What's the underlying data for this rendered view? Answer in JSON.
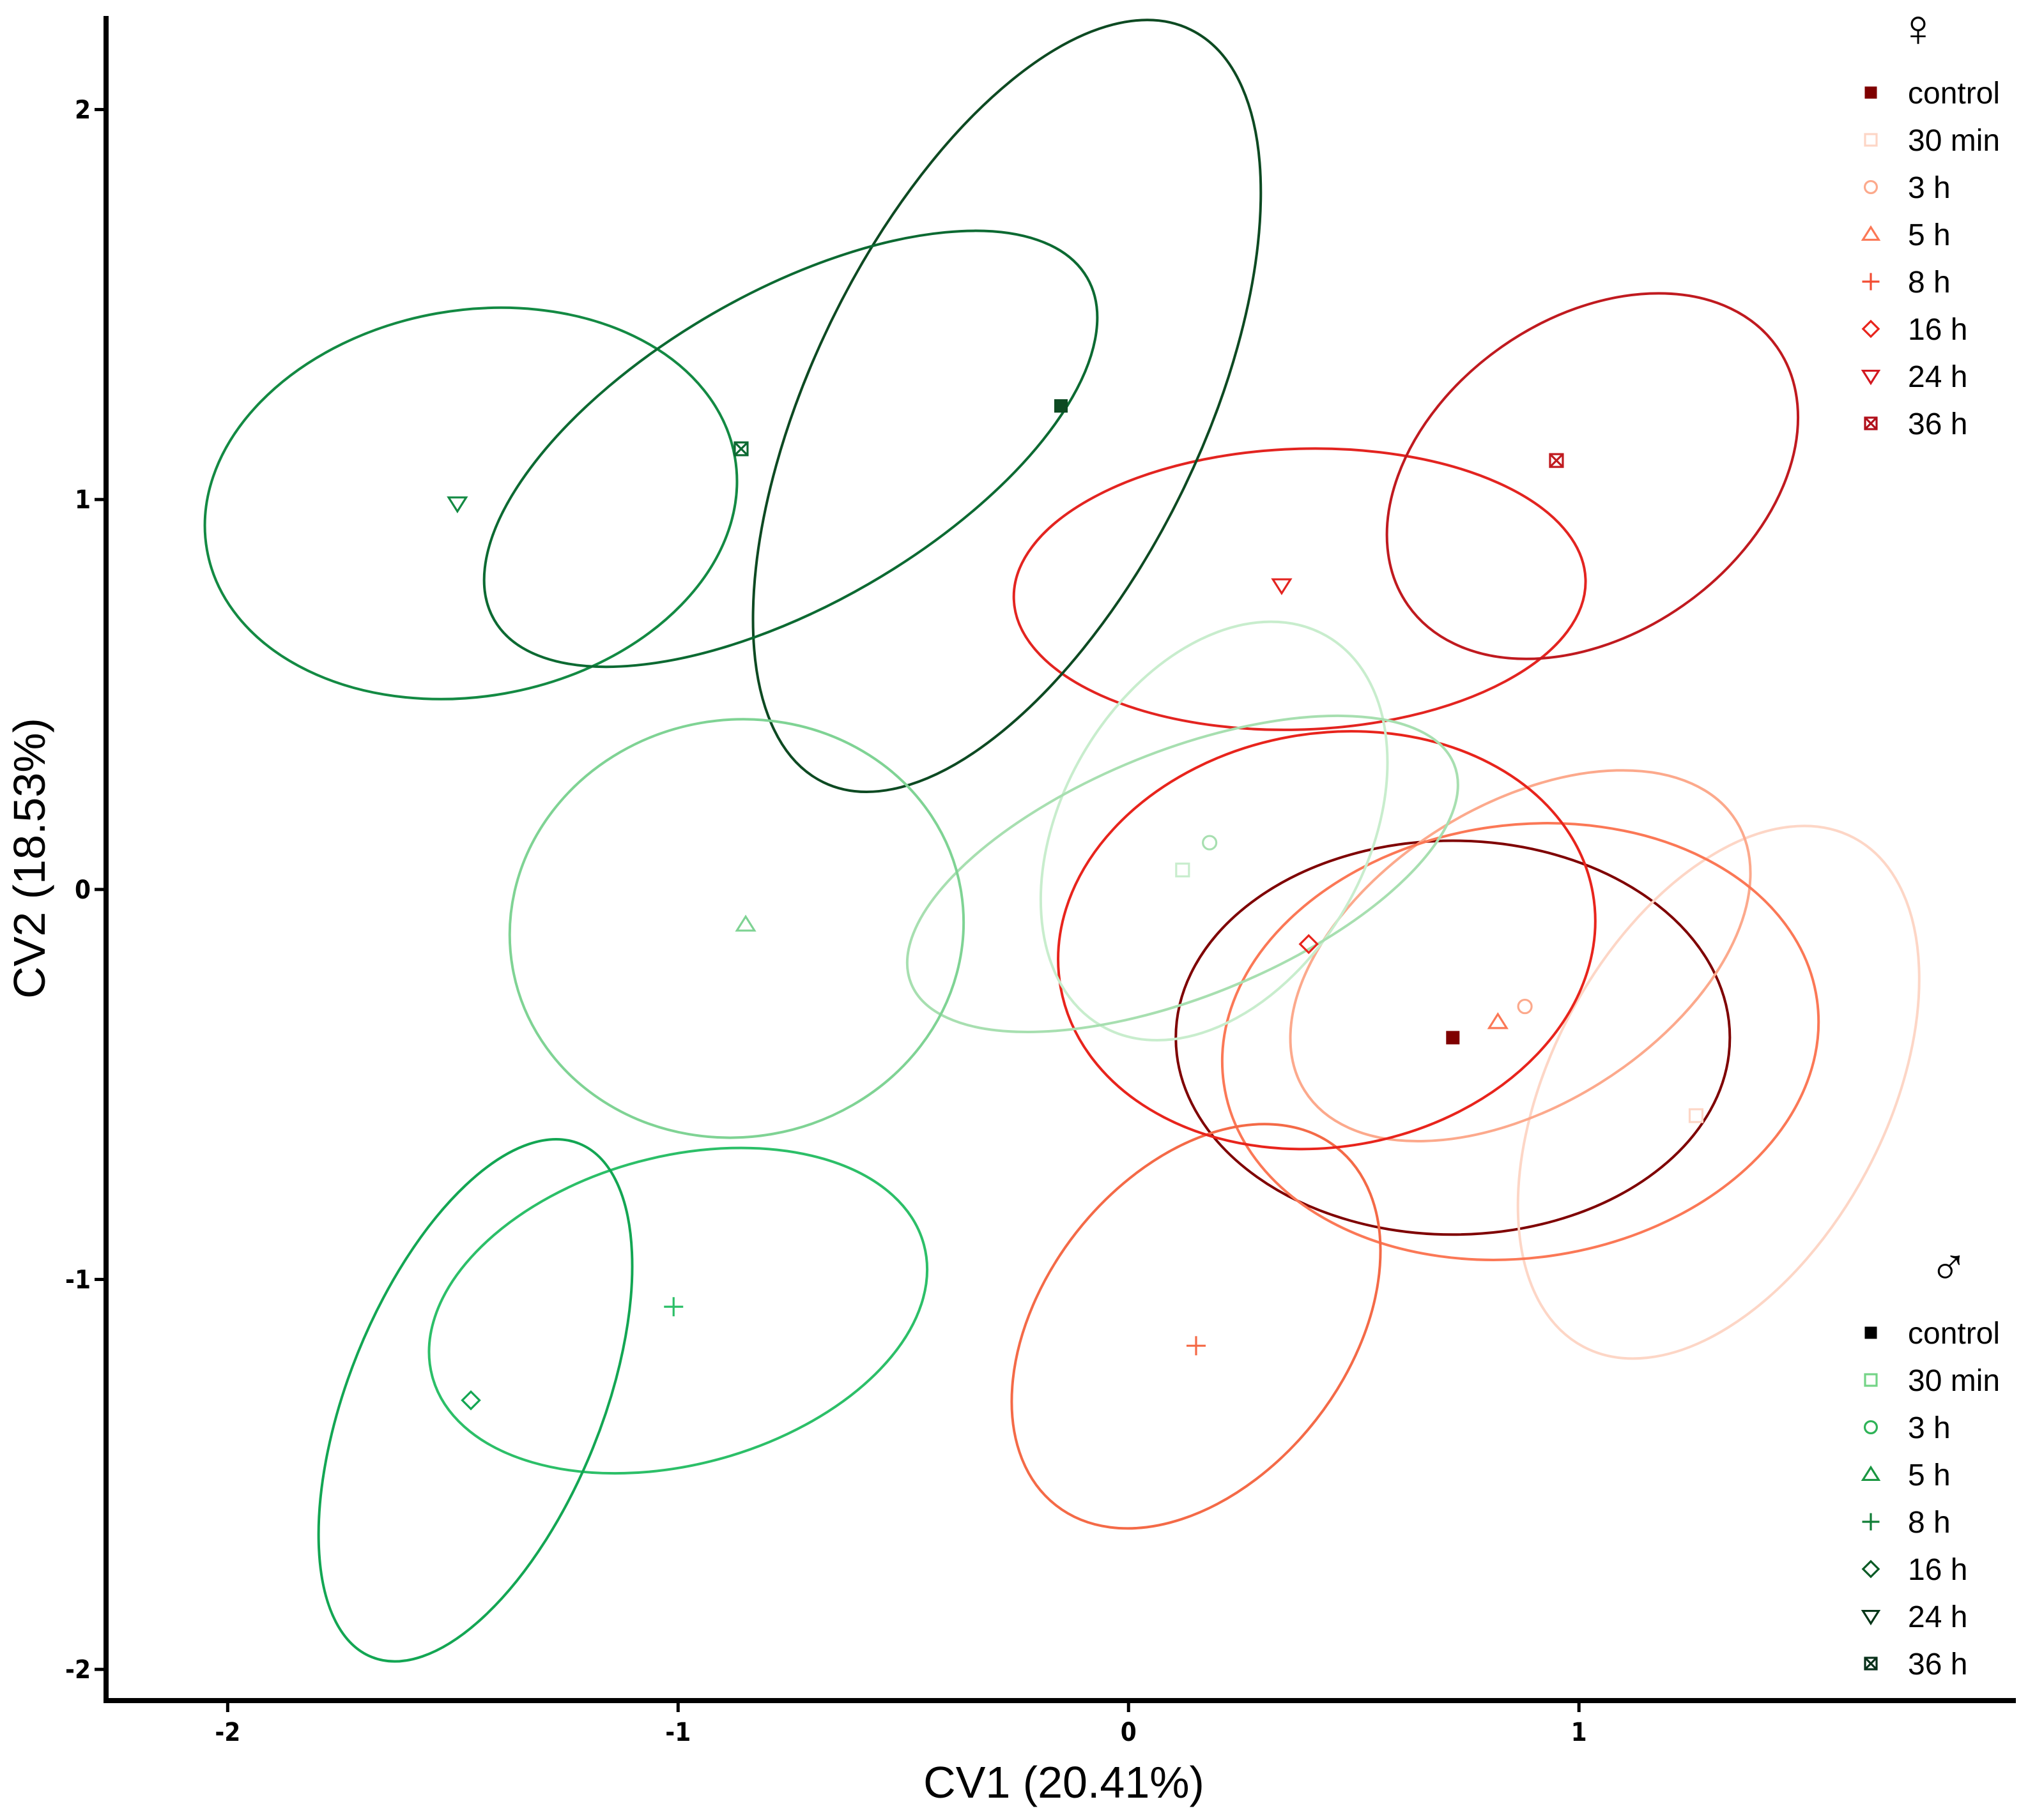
{
  "chart_data": {
    "type": "scatter",
    "xlabel": "CV1 (20.41%)",
    "ylabel": "CV2 (18.53%)",
    "xlim": [
      -2.27,
      1.97
    ],
    "ylim": [
      -2.08,
      2.24
    ],
    "xticks": [
      -2,
      -1,
      0,
      1
    ],
    "yticks": [
      -2,
      -1,
      0,
      1,
      2
    ],
    "xtick_labels": [
      "-2",
      "-1",
      "0",
      "1"
    ],
    "ytick_labels": [
      "-2",
      "-1",
      "0",
      "1",
      "2"
    ],
    "grid": false,
    "legends": [
      {
        "title": "♀",
        "placement": "top-right",
        "entries": [
          {
            "label": "control",
            "shape": "square-filled",
            "color": "#7f0000"
          },
          {
            "label": "30 min",
            "shape": "square",
            "color": "#fdd6c6"
          },
          {
            "label": "3 h",
            "shape": "circle",
            "color": "#fca98c"
          },
          {
            "label": "5 h",
            "shape": "triangle",
            "color": "#fb7856"
          },
          {
            "label": "8 h",
            "shape": "plus",
            "color": "#f24d33"
          },
          {
            "label": "16 h",
            "shape": "diamond",
            "color": "#e8241c"
          },
          {
            "label": "24 h",
            "shape": "triangle-down",
            "color": "#d31820"
          },
          {
            "label": "36 h",
            "shape": "square-x",
            "color": "#b00f1a"
          }
        ]
      },
      {
        "title": "♂",
        "placement": "bottom-right",
        "entries": [
          {
            "label": "control",
            "shape": "square-filled",
            "color": "#000000"
          },
          {
            "label": "30 min",
            "shape": "square",
            "color": "#74d487"
          },
          {
            "label": "3 h",
            "shape": "circle",
            "color": "#2eb357"
          },
          {
            "label": "5 h",
            "shape": "triangle",
            "color": "#1a9641"
          },
          {
            "label": "8 h",
            "shape": "plus",
            "color": "#107d36"
          },
          {
            "label": "16 h",
            "shape": "diamond",
            "color": "#0a5a25"
          },
          {
            "label": "24 h",
            "shape": "triangle-down",
            "color": "#063618"
          },
          {
            "label": "36 h",
            "shape": "square-x",
            "color": "#08301a"
          }
        ]
      }
    ],
    "series": [
      {
        "name": "female control",
        "shape": "square-filled",
        "color": "#7f0000",
        "x": 0.72,
        "y": -0.38,
        "ellipse": {
          "cx": 0.72,
          "cy": -0.38,
          "rx": 0.615,
          "ry": 0.505,
          "angle": 0
        }
      },
      {
        "name": "female 30 min",
        "shape": "square",
        "color": "#fdd6c6",
        "x": 1.26,
        "y": -0.58,
        "ellipse": {
          "cx": 1.31,
          "cy": -0.52,
          "rx": 0.64,
          "ry": 0.43,
          "angle": 62
        }
      },
      {
        "name": "female 3 h",
        "shape": "circle",
        "color": "#fca98c",
        "x": 0.88,
        "y": -0.3,
        "ellipse": {
          "cx": 0.87,
          "cy": -0.17,
          "rx": 0.565,
          "ry": 0.385,
          "angle": 32
        }
      },
      {
        "name": "female 5 h",
        "shape": "triangle",
        "color": "#fb7856",
        "x": 0.82,
        "y": -0.34,
        "ellipse": {
          "cx": 0.87,
          "cy": -0.39,
          "rx": 0.665,
          "ry": 0.555,
          "angle": 8
        }
      },
      {
        "name": "female 8 h",
        "shape": "plus",
        "color": "#f46a47",
        "x": 0.15,
        "y": -1.17,
        "ellipse": {
          "cx": 0.15,
          "cy": -1.12,
          "rx": 0.505,
          "ry": 0.39,
          "angle": 52
        }
      },
      {
        "name": "female 16 h",
        "shape": "diamond",
        "color": "#e8241c",
        "x": 0.4,
        "y": -0.14,
        "ellipse": {
          "cx": 0.44,
          "cy": -0.13,
          "rx": 0.6,
          "ry": 0.53,
          "angle": 10
        }
      },
      {
        "name": "female 24 h",
        "shape": "triangle-down",
        "color": "#e32420",
        "x": 0.34,
        "y": 0.78,
        "ellipse": {
          "cx": 0.38,
          "cy": 0.77,
          "rx": 0.635,
          "ry": 0.36,
          "angle": 2
        }
      },
      {
        "name": "female 36 h",
        "shape": "square-x",
        "color": "#c01a1f",
        "x": 0.95,
        "y": 1.1,
        "ellipse": {
          "cx": 1.03,
          "cy": 1.06,
          "rx": 0.5,
          "ry": 0.405,
          "angle": 35
        }
      },
      {
        "name": "male control",
        "shape": "square-filled",
        "color": "#0d4a22",
        "x": -0.15,
        "y": 1.24,
        "ellipse": {
          "cx": -0.27,
          "cy": 1.24,
          "rx": 0.93,
          "ry": 0.5,
          "angle": 64
        }
      },
      {
        "name": "male 30 min",
        "shape": "square",
        "color": "#c8edcd",
        "x": 0.12,
        "y": 0.05,
        "ellipse": {
          "cx": 0.19,
          "cy": 0.15,
          "rx": 0.5,
          "ry": 0.39,
          "angle": 60
        }
      },
      {
        "name": "male 3 h",
        "shape": "circle",
        "color": "#a7dfb0",
        "x": 0.18,
        "y": 0.12,
        "ellipse": {
          "cx": 0.12,
          "cy": 0.04,
          "rx": 0.65,
          "ry": 0.315,
          "angle": 22
        }
      },
      {
        "name": "male 5 h",
        "shape": "triangle",
        "color": "#7fd394",
        "x": -0.85,
        "y": -0.09,
        "ellipse": {
          "cx": -0.87,
          "cy": -0.1,
          "rx": 0.505,
          "ry": 0.535,
          "angle": 10
        }
      },
      {
        "name": "male 8 h",
        "shape": "plus",
        "color": "#2cbf68",
        "x": -1.01,
        "y": -1.07,
        "ellipse": {
          "cx": -1.0,
          "cy": -1.08,
          "rx": 0.565,
          "ry": 0.395,
          "angle": 15
        }
      },
      {
        "name": "male 16 h",
        "shape": "diamond",
        "color": "#13a653",
        "x": -1.46,
        "y": -1.31,
        "ellipse": {
          "cx": -1.45,
          "cy": -1.31,
          "rx": 0.615,
          "ry": 0.325,
          "angle": 68
        }
      },
      {
        "name": "male 24 h",
        "shape": "triangle-down",
        "color": "#138a43",
        "x": -1.49,
        "y": 0.99,
        "ellipse": {
          "cx": -1.46,
          "cy": 0.99,
          "rx": 0.595,
          "ry": 0.495,
          "angle": 10
        }
      },
      {
        "name": "male 36 h",
        "shape": "square-x",
        "color": "#0c6a32",
        "x": -0.86,
        "y": 1.13,
        "ellipse": {
          "cx": -0.75,
          "cy": 1.13,
          "rx": 0.76,
          "ry": 0.4,
          "angle": 30
        }
      }
    ]
  }
}
